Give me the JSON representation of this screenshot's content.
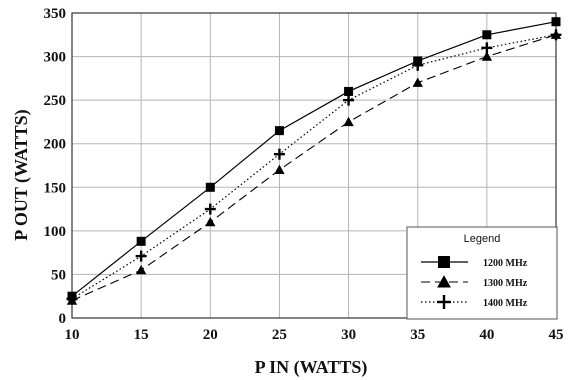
{
  "chart_data": {
    "type": "line",
    "xlabel": "P IN (WATTS)",
    "ylabel": "P OUT (WATTS)",
    "xlim": [
      10,
      45
    ],
    "ylim": [
      0,
      350
    ],
    "x_ticks": [
      10,
      15,
      20,
      25,
      30,
      35,
      40,
      45
    ],
    "y_ticks": [
      0,
      50,
      100,
      150,
      200,
      250,
      300,
      350
    ],
    "grid": true,
    "legend": {
      "title": "Legend",
      "placement": "bottom-right"
    },
    "x": [
      10,
      15,
      20,
      25,
      30,
      35,
      40,
      45
    ],
    "series": [
      {
        "name": "1200 MHz",
        "marker": "square",
        "line": "solid",
        "color": "#000000",
        "values": [
          25,
          88,
          150,
          215,
          260,
          295,
          325,
          340
        ]
      },
      {
        "name": "1300 MHz",
        "marker": "triangle",
        "line": "dashed",
        "color": "#000000",
        "values": [
          20,
          55,
          110,
          170,
          225,
          270,
          300,
          325
        ]
      },
      {
        "name": "1400 MHz",
        "marker": "plus",
        "line": "dotted",
        "color": "#000000",
        "values": [
          22,
          71,
          125,
          188,
          250,
          290,
          310,
          325
        ]
      }
    ]
  }
}
